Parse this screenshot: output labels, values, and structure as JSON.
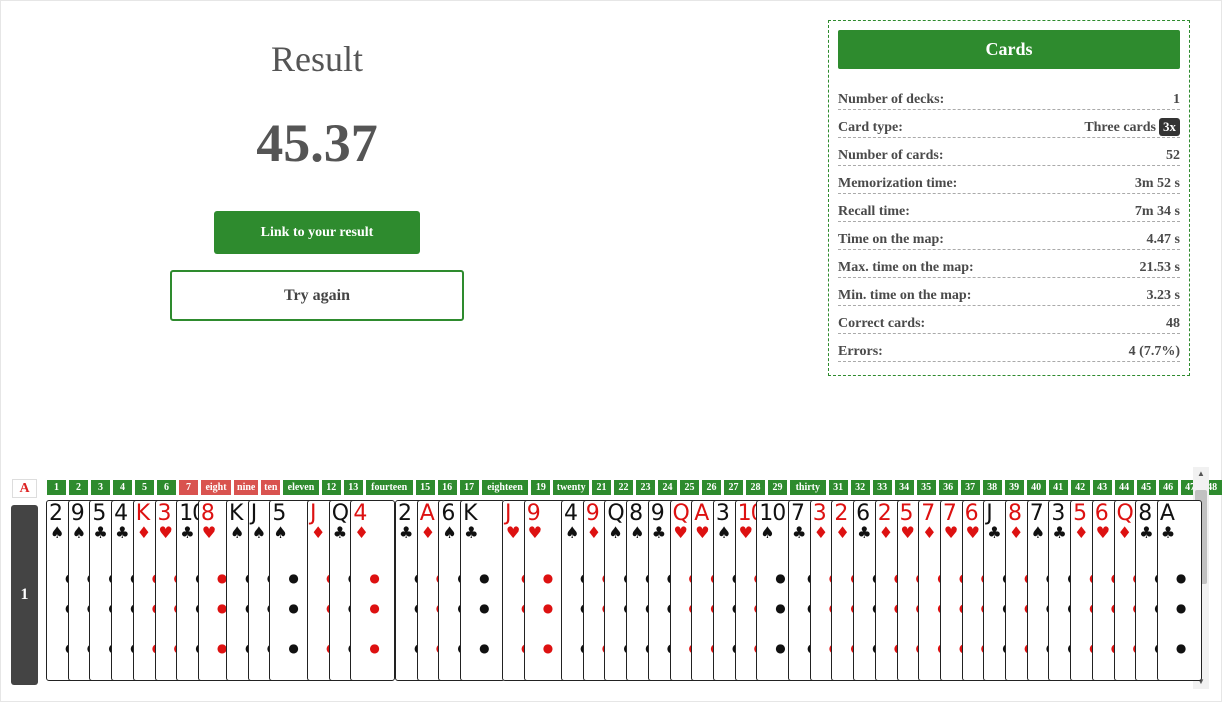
{
  "result": {
    "title": "Result",
    "score": "45.37",
    "link_button": "Link to your result",
    "try_again_button": "Try again"
  },
  "panel": {
    "header": "Cards",
    "stats": [
      {
        "label": "Number of decks:",
        "value": "1"
      },
      {
        "label": "Card type:",
        "value": "Three cards",
        "badge": "3x"
      },
      {
        "label": "Number of cards:",
        "value": "52"
      },
      {
        "label": "Memorization time:",
        "value": "3m 52 s"
      },
      {
        "label": "Recall time:",
        "value": "7m 34 s"
      },
      {
        "label": "Time on the map:",
        "value": "4.47 s"
      },
      {
        "label": "Max. time on the map:",
        "value": "21.53 s"
      },
      {
        "label": "Min. time on the map:",
        "value": "3.23 s"
      },
      {
        "label": "Correct cards:",
        "value": "48"
      },
      {
        "label": "Errors:",
        "value": "4 (7.7%)"
      }
    ]
  },
  "deck": {
    "letter": "A",
    "number": "1"
  },
  "labels": [
    {
      "text": "1",
      "wrong": false
    },
    {
      "text": "2",
      "wrong": false
    },
    {
      "text": "3",
      "wrong": false
    },
    {
      "text": "4",
      "wrong": false
    },
    {
      "text": "5",
      "wrong": false
    },
    {
      "text": "6",
      "wrong": false
    },
    {
      "text": "7",
      "wrong": true
    },
    {
      "text": "eight",
      "wrong": true
    },
    {
      "text": "nine",
      "wrong": true
    },
    {
      "text": "ten",
      "wrong": true
    },
    {
      "text": "eleven",
      "wrong": false
    },
    {
      "text": "12",
      "wrong": false
    },
    {
      "text": "13",
      "wrong": false
    },
    {
      "text": "fourteen",
      "wrong": false
    },
    {
      "text": "15",
      "wrong": false
    },
    {
      "text": "16",
      "wrong": false
    },
    {
      "text": "17",
      "wrong": false
    },
    {
      "text": "eighteen",
      "wrong": false
    },
    {
      "text": "19",
      "wrong": false
    },
    {
      "text": "twenty",
      "wrong": false
    },
    {
      "text": "21",
      "wrong": false
    },
    {
      "text": "22",
      "wrong": false
    },
    {
      "text": "23",
      "wrong": false
    },
    {
      "text": "24",
      "wrong": false
    },
    {
      "text": "25",
      "wrong": false
    },
    {
      "text": "26",
      "wrong": false
    },
    {
      "text": "27",
      "wrong": false
    },
    {
      "text": "28",
      "wrong": false
    },
    {
      "text": "29",
      "wrong": false
    },
    {
      "text": "thirty",
      "wrong": false
    },
    {
      "text": "31",
      "wrong": false
    },
    {
      "text": "32",
      "wrong": false
    },
    {
      "text": "33",
      "wrong": false
    },
    {
      "text": "34",
      "wrong": false
    },
    {
      "text": "35",
      "wrong": false
    },
    {
      "text": "36",
      "wrong": false
    },
    {
      "text": "37",
      "wrong": false
    },
    {
      "text": "38",
      "wrong": false
    },
    {
      "text": "39",
      "wrong": false
    },
    {
      "text": "40",
      "wrong": false
    },
    {
      "text": "41",
      "wrong": false
    },
    {
      "text": "42",
      "wrong": false
    },
    {
      "text": "43",
      "wrong": false
    },
    {
      "text": "44",
      "wrong": false
    },
    {
      "text": "45",
      "wrong": false
    },
    {
      "text": "46",
      "wrong": false
    },
    {
      "text": "47",
      "wrong": false
    },
    {
      "text": "48",
      "wrong": false
    }
  ],
  "cards": [
    {
      "rank": "2",
      "suit": "♠",
      "color": "black"
    },
    {
      "rank": "9",
      "suit": "♠",
      "color": "black"
    },
    {
      "rank": "5",
      "suit": "♣",
      "color": "black"
    },
    {
      "rank": "4",
      "suit": "♣",
      "color": "black"
    },
    {
      "rank": "K",
      "suit": "♦",
      "color": "red"
    },
    {
      "rank": "3",
      "suit": "♥",
      "color": "red"
    },
    {
      "rank": "10",
      "suit": "♣",
      "color": "black"
    },
    {
      "rank": "8",
      "suit": "♥",
      "color": "red"
    },
    {
      "rank": "K",
      "suit": "♠",
      "color": "black"
    },
    {
      "rank": "J",
      "suit": "♠",
      "color": "black"
    },
    {
      "rank": "5",
      "suit": "♠",
      "color": "black"
    },
    {
      "rank": "J",
      "suit": "♦",
      "color": "red"
    },
    {
      "rank": "Q",
      "suit": "♣",
      "color": "black"
    },
    {
      "rank": "4",
      "suit": "♦",
      "color": "red"
    },
    {
      "rank": "2",
      "suit": "♣",
      "color": "black"
    },
    {
      "rank": "A",
      "suit": "♦",
      "color": "red"
    },
    {
      "rank": "6",
      "suit": "♠",
      "color": "black"
    },
    {
      "rank": "K",
      "suit": "♣",
      "color": "black"
    },
    {
      "rank": "J",
      "suit": "♥",
      "color": "red"
    },
    {
      "rank": "9",
      "suit": "♥",
      "color": "red"
    },
    {
      "rank": "4",
      "suit": "♠",
      "color": "black"
    },
    {
      "rank": "9",
      "suit": "♦",
      "color": "red"
    },
    {
      "rank": "Q",
      "suit": "♠",
      "color": "black"
    },
    {
      "rank": "8",
      "suit": "♠",
      "color": "black"
    },
    {
      "rank": "9",
      "suit": "♣",
      "color": "black"
    },
    {
      "rank": "Q",
      "suit": "♥",
      "color": "red"
    },
    {
      "rank": "A",
      "suit": "♥",
      "color": "red"
    },
    {
      "rank": "3",
      "suit": "♠",
      "color": "black"
    },
    {
      "rank": "10",
      "suit": "♥",
      "color": "red"
    },
    {
      "rank": "10",
      "suit": "♠",
      "color": "black"
    },
    {
      "rank": "7",
      "suit": "♣",
      "color": "black"
    },
    {
      "rank": "3",
      "suit": "♦",
      "color": "red"
    },
    {
      "rank": "2",
      "suit": "♦",
      "color": "red"
    },
    {
      "rank": "6",
      "suit": "♣",
      "color": "black"
    },
    {
      "rank": "2",
      "suit": "♦",
      "color": "red"
    },
    {
      "rank": "5",
      "suit": "♥",
      "color": "red"
    },
    {
      "rank": "7",
      "suit": "♦",
      "color": "red"
    },
    {
      "rank": "7",
      "suit": "♥",
      "color": "red"
    },
    {
      "rank": "6",
      "suit": "♥",
      "color": "red"
    },
    {
      "rank": "J",
      "suit": "♣",
      "color": "black"
    },
    {
      "rank": "8",
      "suit": "♦",
      "color": "red"
    },
    {
      "rank": "7",
      "suit": "♠",
      "color": "black"
    },
    {
      "rank": "3",
      "suit": "♣",
      "color": "black"
    },
    {
      "rank": "5",
      "suit": "♦",
      "color": "red"
    },
    {
      "rank": "6",
      "suit": "♥",
      "color": "red"
    },
    {
      "rank": "Q",
      "suit": "♦",
      "color": "red"
    },
    {
      "rank": "8",
      "suit": "♣",
      "color": "black"
    },
    {
      "rank": "A",
      "suit": "♣",
      "color": "black"
    }
  ]
}
